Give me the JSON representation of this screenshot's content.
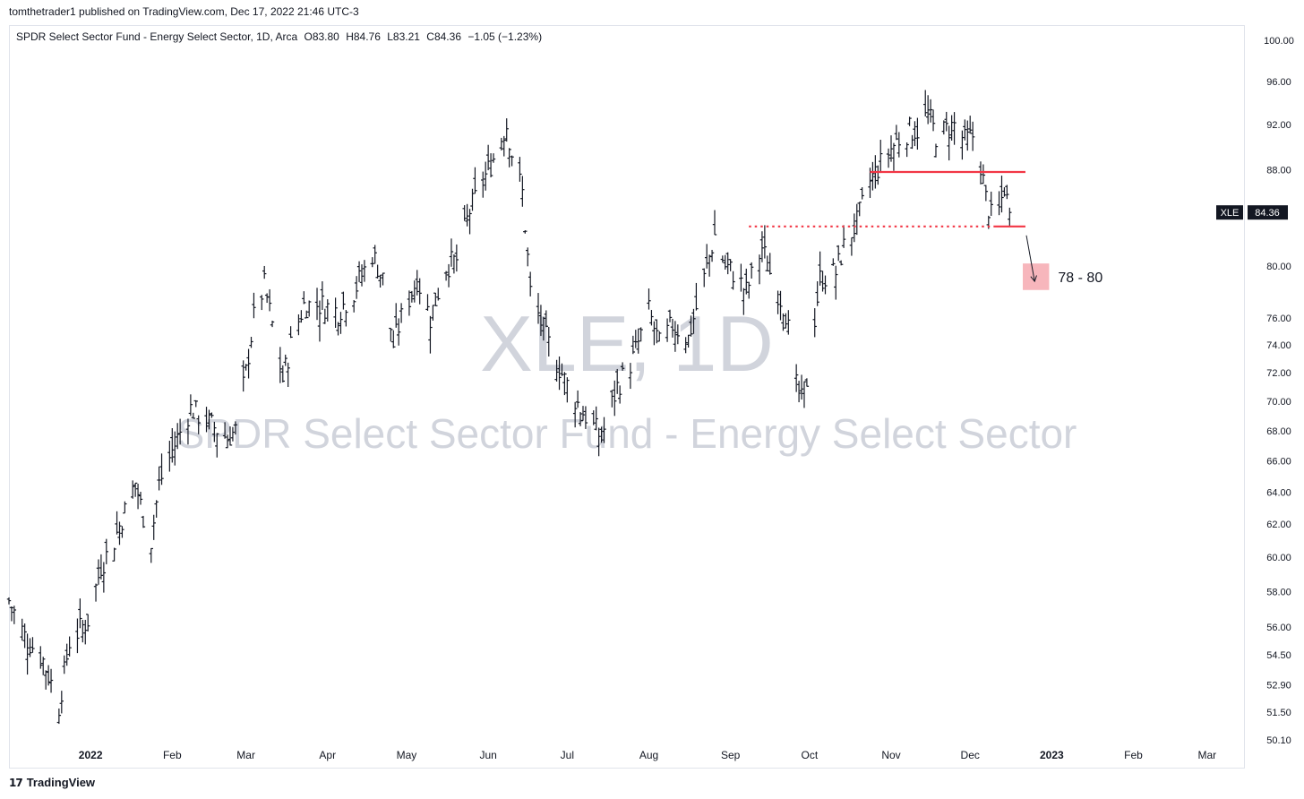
{
  "attribution": "tomthetrader1 published on TradingView.com, Dec 17, 2022 21:46 UTC-3",
  "header": {
    "title": "SPDR Select Sector Fund - Energy Select Sector, 1D, Arca",
    "open": "O83.80",
    "high": "H84.76",
    "low": "L83.21",
    "close": "C84.36",
    "change": "−1.05 (−1.23%)"
  },
  "watermark": {
    "symbol": "XLE, 1D",
    "name": "SPDR Select Sector Fund - Energy Select Sector"
  },
  "footer": {
    "brand": "TradingView",
    "brand_mark": "17"
  },
  "colors": {
    "bars": "#131722",
    "level": "#f23645",
    "target_zone": "#f7b6bc",
    "watermark": "#d1d4dc",
    "axis_text": "#131722"
  },
  "chart_data": {
    "type": "ohlc",
    "symbol": "XLE",
    "interval": "1D",
    "last_price": 84.36,
    "price_label": "84.36",
    "symbol_tag": "XLE",
    "y_scale": "log",
    "ylim": [
      50.1,
      100.0
    ],
    "y_ticks": [
      "100.00",
      "96.00",
      "92.00",
      "88.00",
      "80.00",
      "76.00",
      "74.00",
      "72.00",
      "70.00",
      "68.00",
      "66.00",
      "64.00",
      "62.00",
      "60.00",
      "58.00",
      "56.00",
      "54.50",
      "52.90",
      "51.50",
      "50.10"
    ],
    "x_ticks": [
      "2022",
      "Feb",
      "Mar",
      "Apr",
      "May",
      "Jun",
      "Jul",
      "Aug",
      "Sep",
      "Oct",
      "Nov",
      "Dec",
      "2023",
      "Feb",
      "Mar"
    ],
    "x_range": [
      "2021-12-01",
      "2023-03-15"
    ],
    "grid": false,
    "levels": [
      {
        "price": 87.8,
        "style": "solid",
        "from": "2022-10-24",
        "to": "2022-12-22"
      },
      {
        "price": 83.2,
        "style": "dotted",
        "from": "2022-09-08",
        "to": "2022-12-10"
      },
      {
        "price": 83.2,
        "style": "solid",
        "from": "2022-12-10",
        "to": "2022-12-22"
      }
    ],
    "target_zone": {
      "low": 78,
      "high": 80,
      "label": "78 - 80",
      "from": "2022-12-21",
      "to": "2022-12-31"
    },
    "price_path": [
      [
        "2021-12-01",
        57.5
      ],
      [
        "2021-12-07",
        55.5
      ],
      [
        "2021-12-14",
        54.2
      ],
      [
        "2021-12-20",
        51.8
      ],
      [
        "2021-12-24",
        55.2
      ],
      [
        "2021-12-31",
        56.4
      ],
      [
        "2022-01-05",
        59.5
      ],
      [
        "2022-01-10",
        61.0
      ],
      [
        "2022-01-18",
        64.6
      ],
      [
        "2022-01-21",
        62.5
      ],
      [
        "2022-01-24",
        61.0
      ],
      [
        "2022-01-27",
        64.5
      ],
      [
        "2022-02-03",
        67.5
      ],
      [
        "2022-02-08",
        69.5
      ],
      [
        "2022-02-15",
        68.5
      ],
      [
        "2022-02-22",
        67.5
      ],
      [
        "2022-02-25",
        68.0
      ],
      [
        "2022-03-01",
        72.0
      ],
      [
        "2022-03-04",
        76.0
      ],
      [
        "2022-03-08",
        78.5
      ],
      [
        "2022-03-11",
        75.5
      ],
      [
        "2022-03-15",
        71.5
      ],
      [
        "2022-03-18",
        74.0
      ],
      [
        "2022-03-23",
        77.0
      ],
      [
        "2022-03-30",
        77.0
      ],
      [
        "2022-04-05",
        76.5
      ],
      [
        "2022-04-11",
        78.0
      ],
      [
        "2022-04-18",
        81.0
      ],
      [
        "2022-04-22",
        79.0
      ],
      [
        "2022-04-26",
        74.0
      ],
      [
        "2022-04-29",
        76.0
      ],
      [
        "2022-05-05",
        79.0
      ],
      [
        "2022-05-10",
        76.0
      ],
      [
        "2022-05-16",
        80.0
      ],
      [
        "2022-05-20",
        80.5
      ],
      [
        "2022-05-25",
        84.5
      ],
      [
        "2022-05-31",
        87.5
      ],
      [
        "2022-06-03",
        89.0
      ],
      [
        "2022-06-08",
        92.0
      ],
      [
        "2022-06-10",
        89.5
      ],
      [
        "2022-06-14",
        86.0
      ],
      [
        "2022-06-17",
        78.0
      ],
      [
        "2022-06-23",
        74.5
      ],
      [
        "2022-06-30",
        71.5
      ],
      [
        "2022-07-06",
        69.5
      ],
      [
        "2022-07-14",
        67.5
      ],
      [
        "2022-07-20",
        71.0
      ],
      [
        "2022-07-26",
        73.0
      ],
      [
        "2022-08-01",
        76.5
      ],
      [
        "2022-08-05",
        74.0
      ],
      [
        "2022-08-10",
        75.5
      ],
      [
        "2022-08-16",
        74.5
      ],
      [
        "2022-08-22",
        79.0
      ],
      [
        "2022-08-26",
        82.5
      ],
      [
        "2022-08-30",
        80.0
      ],
      [
        "2022-09-02",
        79.5
      ],
      [
        "2022-09-07",
        78.0
      ],
      [
        "2022-09-13",
        81.5
      ],
      [
        "2022-09-16",
        79.5
      ],
      [
        "2022-09-22",
        76.5
      ],
      [
        "2022-09-26",
        71.0
      ],
      [
        "2022-09-28",
        70.0
      ],
      [
        "2022-09-30",
        71.5
      ],
      [
        "2022-10-05",
        79.0
      ],
      [
        "2022-10-11",
        79.5
      ],
      [
        "2022-10-14",
        81.5
      ],
      [
        "2022-10-19",
        83.5
      ],
      [
        "2022-10-24",
        87.0
      ],
      [
        "2022-10-28",
        88.5
      ],
      [
        "2022-11-03",
        90.5
      ],
      [
        "2022-11-08",
        91.5
      ],
      [
        "2022-11-11",
        91.5
      ],
      [
        "2022-11-15",
        93.0
      ],
      [
        "2022-11-18",
        91.0
      ],
      [
        "2022-11-22",
        91.5
      ],
      [
        "2022-11-25",
        92.0
      ],
      [
        "2022-11-29",
        90.5
      ],
      [
        "2022-12-02",
        91.0
      ],
      [
        "2022-12-05",
        88.5
      ],
      [
        "2022-12-07",
        85.5
      ],
      [
        "2022-12-09",
        84.0
      ],
      [
        "2022-12-12",
        84.5
      ],
      [
        "2022-12-14",
        86.5
      ],
      [
        "2022-12-16",
        84.4
      ]
    ]
  }
}
